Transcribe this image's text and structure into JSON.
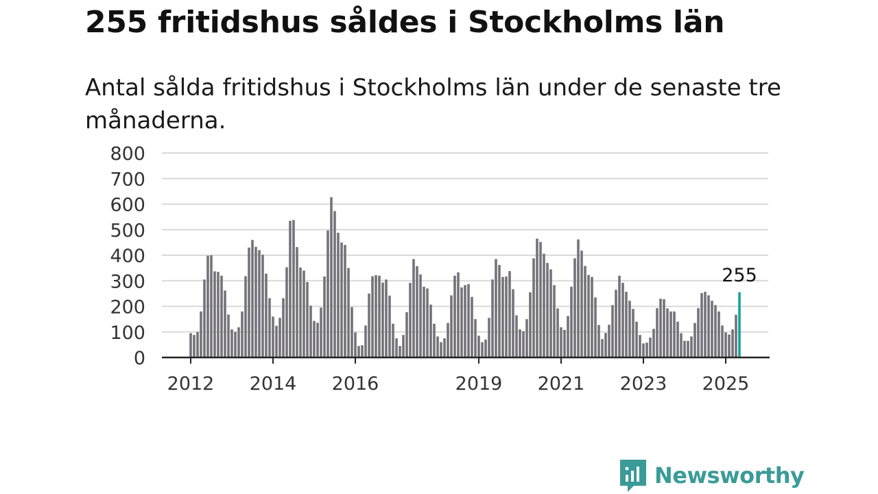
{
  "title": "255 fritidshus såldes i Stockholms län",
  "subtitle": "Antal sålda fritidshus i Stockholms län under de senaste tre månaderna.",
  "brand": {
    "name": "Newsworthy",
    "icon": "bar-chart-speech-bubble-icon",
    "color": "#3a9b98"
  },
  "colors": {
    "bar": "#75737a",
    "highlight": "#13a39c",
    "grid": "#d9d9d9",
    "axis": "#222222"
  },
  "chart_data": {
    "type": "bar",
    "title": "255 fritidshus såldes i Stockholms län",
    "subtitle": "Antal sålda fritidshus i Stockholms län under de senaste tre månaderna.",
    "xlabel": "",
    "ylabel": "",
    "ylim": [
      0,
      800
    ],
    "yticks": [
      "0",
      "100",
      "200",
      "300",
      "400",
      "500",
      "600",
      "700",
      "800"
    ],
    "xticks": [
      {
        "label": "2012",
        "date": "2012-01"
      },
      {
        "label": "2014",
        "date": "2014-01"
      },
      {
        "label": "2016",
        "date": "2016-01"
      },
      {
        "label": "2019",
        "date": "2019-01"
      },
      {
        "label": "2021",
        "date": "2021-01"
      },
      {
        "label": "2023",
        "date": "2023-01"
      },
      {
        "label": "2025",
        "date": "2025-01"
      }
    ],
    "grid": true,
    "legend": "none",
    "start": "2012-01",
    "values": [
      95,
      88,
      100,
      180,
      305,
      398,
      400,
      337,
      335,
      320,
      262,
      168,
      110,
      100,
      118,
      180,
      318,
      430,
      460,
      433,
      420,
      402,
      328,
      232,
      160,
      124,
      155,
      232,
      353,
      535,
      538,
      432,
      352,
      340,
      295,
      203,
      143,
      136,
      195,
      317,
      497,
      627,
      573,
      488,
      450,
      440,
      350,
      197,
      98,
      45,
      48,
      125,
      250,
      318,
      322,
      320,
      293,
      305,
      242,
      132,
      75,
      45,
      88,
      177,
      292,
      385,
      357,
      325,
      277,
      270,
      207,
      132,
      82,
      60,
      75,
      135,
      243,
      320,
      333,
      274,
      283,
      287,
      237,
      150,
      85,
      60,
      70,
      155,
      305,
      385,
      362,
      315,
      317,
      338,
      267,
      165,
      110,
      103,
      150,
      255,
      388,
      465,
      452,
      406,
      370,
      345,
      283,
      192,
      118,
      108,
      162,
      277,
      388,
      462,
      418,
      358,
      323,
      315,
      235,
      127,
      72,
      96,
      128,
      205,
      265,
      320,
      292,
      257,
      222,
      190,
      140,
      88,
      55,
      58,
      78,
      112,
      193,
      230,
      228,
      192,
      180,
      180,
      140,
      95,
      65,
      65,
      82,
      135,
      193,
      252,
      257,
      243,
      222,
      205,
      180,
      125,
      98,
      90,
      110,
      167,
      255
    ],
    "highlight": {
      "date": "2025-05",
      "value": 255
    },
    "annotations": [
      {
        "date": "2025-05",
        "text": "255"
      }
    ]
  }
}
